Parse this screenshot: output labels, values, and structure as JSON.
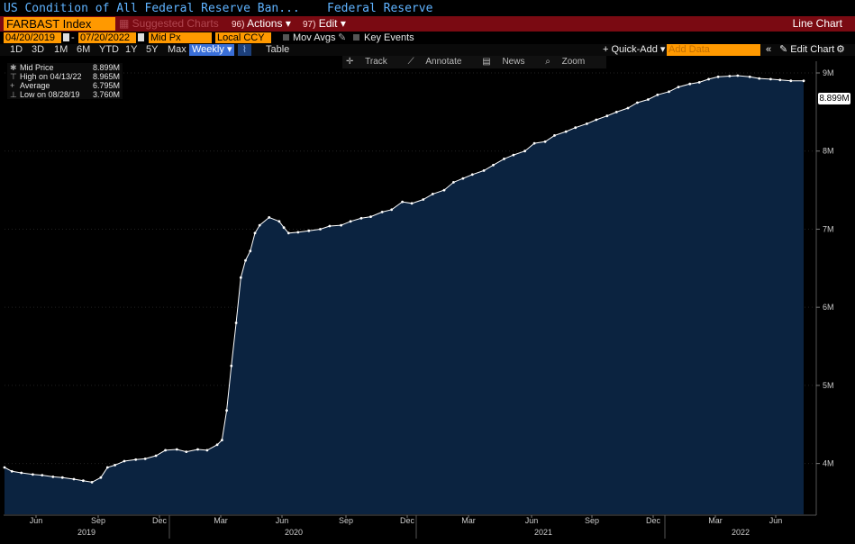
{
  "header": {
    "security_title": "US Condition of All Federal Reserve Ban...",
    "source": "Federal Reserve"
  },
  "menubar": {
    "ticker": "FARBAST Index",
    "suggested": "Suggested Charts",
    "actions_num": "96)",
    "actions": "Actions",
    "edit_num": "97)",
    "edit": "Edit",
    "chart_type": "Line Chart"
  },
  "params": {
    "start_date": "04/20/2019",
    "end_date": "07/20/2022",
    "field": "Mid Px",
    "currency": "Local CCY",
    "mov_avgs": "Mov Avgs",
    "key_events": "Key Events"
  },
  "ranges": {
    "items": [
      "1D",
      "3D",
      "1M",
      "6M",
      "YTD",
      "1Y",
      "5Y",
      "Max"
    ],
    "period": "Weekly",
    "table": "Table",
    "quick_add": "+ Quick-Add",
    "add_data_placeholder": "Add Data",
    "edit_chart": "Edit Chart"
  },
  "chart_tools": {
    "track": "Track",
    "annotate": "Annotate",
    "news": "News",
    "zoom": "Zoom"
  },
  "legend": {
    "mid_label": "Mid Price",
    "mid_value": "8.899M",
    "high_label": "High on 04/13/22",
    "high_value": "8.965M",
    "avg_label": "Average",
    "avg_value": "6.795M",
    "low_label": "Low on 08/28/19",
    "low_value": "3.760M"
  },
  "colors": {
    "line": "#ffffff",
    "area": "#0b2340",
    "background": "#000000",
    "ticker_bar": "#7a0a12",
    "input_orange": "#ff9900"
  },
  "chart_data": {
    "type": "area",
    "y_unit": "M",
    "y_ticks": [
      "4M",
      "5M",
      "6M",
      "7M",
      "8M",
      "9M"
    ],
    "y_tick_values": [
      4,
      5,
      6,
      7,
      8,
      9
    ],
    "ylim": [
      3.35,
      9.15
    ],
    "last_value_label": "8.899M",
    "x_month_labels": [
      "Jun",
      "Sep",
      "Dec",
      "Mar",
      "Jun",
      "Sep",
      "Dec",
      "Mar",
      "Jun",
      "Sep",
      "Dec",
      "Mar",
      "Jun"
    ],
    "x_year_labels": [
      "2019",
      "2020",
      "2021",
      "2022"
    ],
    "x": [
      "2019-04-20",
      "2019-05-01",
      "2019-05-15",
      "2019-06-01",
      "2019-06-15",
      "2019-07-01",
      "2019-07-15",
      "2019-08-01",
      "2019-08-15",
      "2019-08-28",
      "2019-09-10",
      "2019-09-20",
      "2019-10-01",
      "2019-10-15",
      "2019-11-01",
      "2019-11-15",
      "2019-12-01",
      "2019-12-15",
      "2020-01-01",
      "2020-01-15",
      "2020-02-01",
      "2020-02-15",
      "2020-03-01",
      "2020-03-08",
      "2020-03-15",
      "2020-03-22",
      "2020-03-29",
      "2020-04-05",
      "2020-04-12",
      "2020-04-19",
      "2020-04-26",
      "2020-05-03",
      "2020-05-17",
      "2020-06-01",
      "2020-06-08",
      "2020-06-15",
      "2020-06-29",
      "2020-07-15",
      "2020-08-01",
      "2020-08-15",
      "2020-09-01",
      "2020-09-15",
      "2020-10-01",
      "2020-10-15",
      "2020-11-01",
      "2020-11-15",
      "2020-12-01",
      "2020-12-15",
      "2021-01-01",
      "2021-01-15",
      "2021-02-01",
      "2021-02-15",
      "2021-03-01",
      "2021-03-15",
      "2021-04-01",
      "2021-04-15",
      "2021-05-01",
      "2021-05-15",
      "2021-06-01",
      "2021-06-15",
      "2021-07-01",
      "2021-07-15",
      "2021-08-01",
      "2021-08-15",
      "2021-09-01",
      "2021-09-15",
      "2021-10-01",
      "2021-10-15",
      "2021-11-01",
      "2021-11-15",
      "2021-12-01",
      "2021-12-15",
      "2022-01-01",
      "2022-01-15",
      "2022-02-01",
      "2022-02-15",
      "2022-03-01",
      "2022-03-15",
      "2022-04-01",
      "2022-04-13",
      "2022-05-01",
      "2022-05-15",
      "2022-06-01",
      "2022-06-15",
      "2022-07-01",
      "2022-07-20"
    ],
    "values": [
      3.95,
      3.9,
      3.88,
      3.86,
      3.85,
      3.83,
      3.82,
      3.8,
      3.78,
      3.76,
      3.82,
      3.95,
      3.98,
      4.03,
      4.05,
      4.06,
      4.1,
      4.17,
      4.18,
      4.15,
      4.18,
      4.17,
      4.24,
      4.3,
      4.68,
      5.25,
      5.8,
      6.38,
      6.6,
      6.72,
      6.95,
      7.05,
      7.15,
      7.1,
      7.02,
      6.95,
      6.96,
      6.98,
      7.0,
      7.04,
      7.05,
      7.1,
      7.14,
      7.16,
      7.22,
      7.25,
      7.35,
      7.33,
      7.38,
      7.45,
      7.5,
      7.6,
      7.65,
      7.7,
      7.75,
      7.82,
      7.9,
      7.95,
      8.0,
      8.1,
      8.12,
      8.2,
      8.25,
      8.3,
      8.35,
      8.4,
      8.45,
      8.5,
      8.55,
      8.62,
      8.66,
      8.72,
      8.76,
      8.82,
      8.86,
      8.88,
      8.92,
      8.95,
      8.96,
      8.965,
      8.95,
      8.93,
      8.92,
      8.91,
      8.9,
      8.899
    ]
  }
}
